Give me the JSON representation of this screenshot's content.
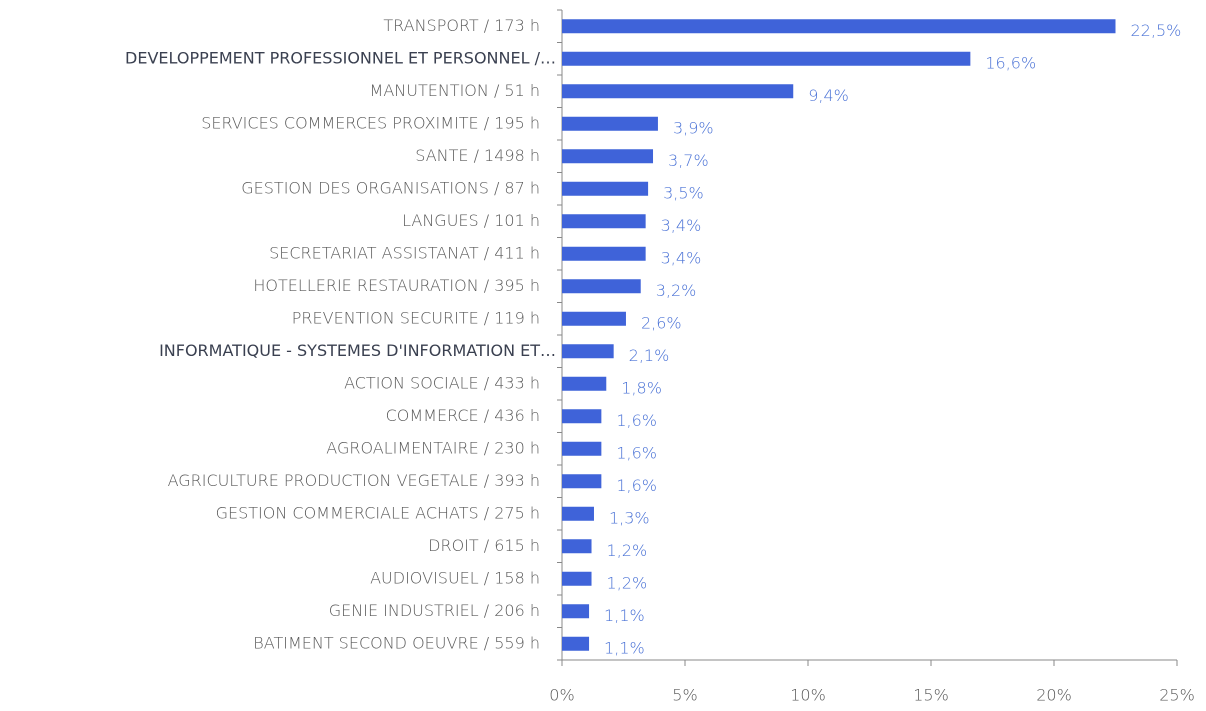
{
  "chart_data": {
    "type": "bar",
    "orientation": "horizontal",
    "color": "#3f63d9",
    "categories": [
      "TRANSPORT  / 173 h",
      "DEVELOPPEMENT PROFESSIONNEL ET PERSONNEL  /…",
      "MANUTENTION  / 51 h",
      "SERVICES COMMERCES PROXIMITE  / 195 h",
      "SANTE  / 1498 h",
      "GESTION DES ORGANISATIONS  / 87 h",
      "LANGUES  / 101 h",
      "SECRETARIAT ASSISTANAT  / 411 h",
      "HOTELLERIE RESTAURATION  / 395 h",
      "PREVENTION SECURITE  / 119 h",
      "INFORMATIQUE - SYSTEMES D'INFORMATION ET…",
      "ACTION SOCIALE  / 433 h",
      "COMMERCE  / 436 h",
      "AGROALIMENTAIRE  / 230 h",
      "AGRICULTURE PRODUCTION VEGETALE  / 393 h",
      "GESTION COMMERCIALE ACHATS  / 275 h",
      "DROIT  / 615 h",
      "AUDIOVISUEL  / 158 h",
      "GENIE INDUSTRIEL  / 206 h",
      "BATIMENT SECOND OEUVRE  / 559 h"
    ],
    "values": [
      22.5,
      16.6,
      9.4,
      3.9,
      3.7,
      3.5,
      3.4,
      3.4,
      3.2,
      2.6,
      2.1,
      1.8,
      1.6,
      1.6,
      1.6,
      1.3,
      1.2,
      1.2,
      1.1,
      1.1
    ],
    "value_labels": [
      "22,5%",
      "16,6%",
      "9,4%",
      "3,9%",
      "3,7%",
      "3,5%",
      "3,4%",
      "3,4%",
      "3,2%",
      "2,6%",
      "2,1%",
      "1,8%",
      "1,6%",
      "1,6%",
      "1,6%",
      "1,3%",
      "1,2%",
      "1,2%",
      "1,1%",
      "1,1%"
    ],
    "xlim": [
      0,
      25
    ],
    "xticks": [
      {
        "value": 0,
        "label": "0%"
      },
      {
        "value": 5,
        "label": "5%"
      },
      {
        "value": 10,
        "label": "10%"
      },
      {
        "value": 15,
        "label": "15%"
      },
      {
        "value": 20,
        "label": "20%"
      },
      {
        "value": 25,
        "label": "25%"
      }
    ]
  }
}
